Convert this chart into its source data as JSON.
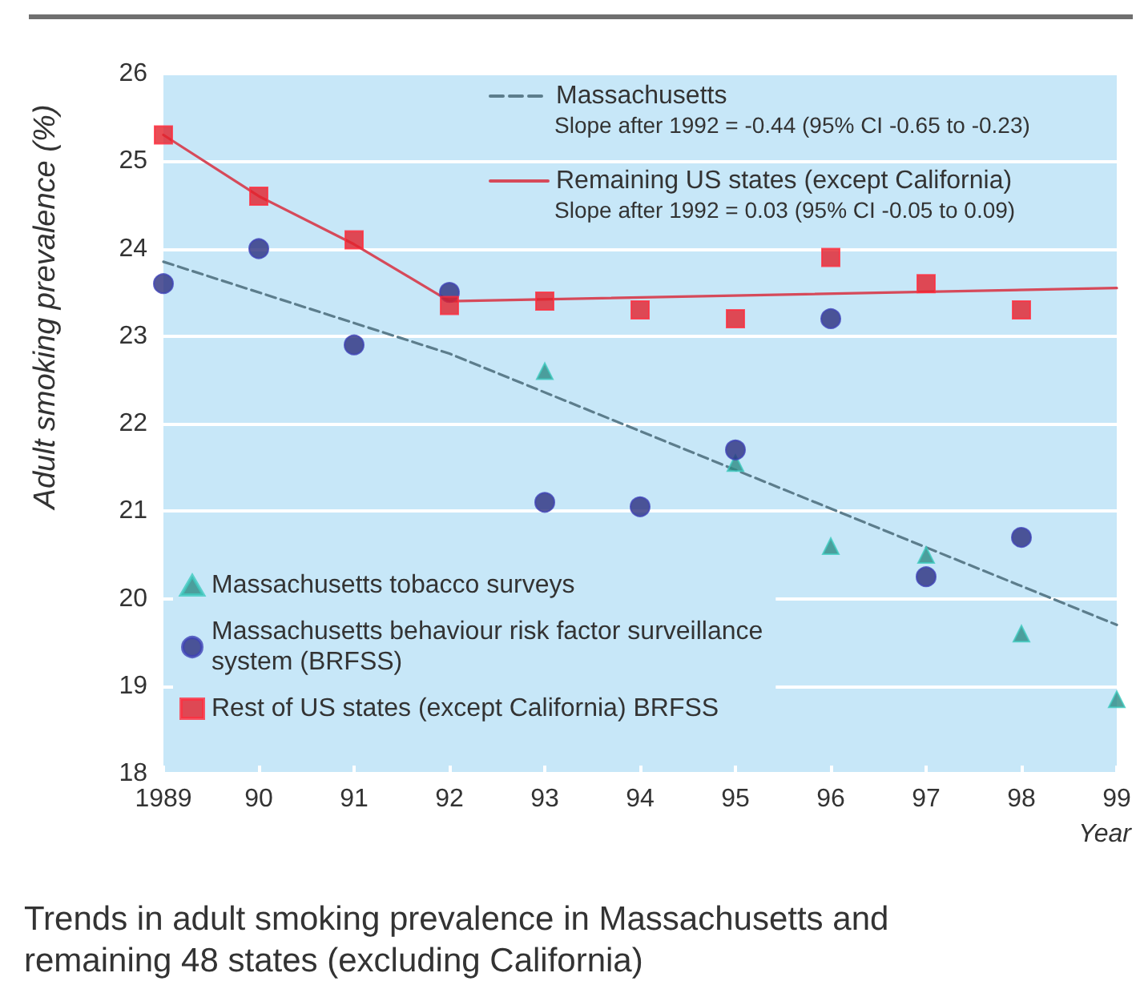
{
  "chart_data": {
    "type": "scatter",
    "title": "Trends in adult smoking prevalence in Massachusetts and remaining 48 states (excluding California)",
    "xlabel": "Year",
    "ylabel": "Adult smoking prevalence (%)",
    "annotations": [
      "Slope after 1992 = -0.44 (95% CI -0.65 to -0.23)",
      "Slope after 1992 = 0.03 (95% CI -0.05 to 0.09)"
    ],
    "series": [
      {
        "name": "Massachusetts",
        "type": "line",
        "color": "#5c7d8c",
        "line_style": "dashed",
        "marker": "none",
        "x": [
          1989,
          1992,
          1999
        ],
        "values": [
          23.85,
          22.8,
          19.7
        ]
      },
      {
        "name": "Remaining US states (except California)",
        "type": "line",
        "color": "#d64a5a",
        "line_style": "solid",
        "marker": "none",
        "x": [
          1989,
          1990,
          1991,
          1992,
          1999
        ],
        "values": [
          25.3,
          24.6,
          24.05,
          23.4,
          23.55
        ]
      },
      {
        "name": "Massachusetts tobacco surveys",
        "color": "#2c8c84",
        "marker": "triangle",
        "x": [
          1993,
          1995,
          1996,
          1997,
          1998,
          1999
        ],
        "values": [
          22.6,
          21.55,
          20.6,
          20.5,
          19.6,
          18.85
        ]
      },
      {
        "name": "Massachusetts behaviour risk factor surveillance system (BRFSS)",
        "color": "#2b2e7e",
        "marker": "circle",
        "x": [
          1989,
          1990,
          1991,
          1992,
          1993,
          1994,
          1995,
          1996,
          1997,
          1998
        ],
        "values": [
          23.6,
          24.0,
          22.9,
          23.5,
          21.1,
          21.05,
          21.7,
          23.2,
          20.25,
          20.7
        ]
      },
      {
        "name": "Rest of US states (except California) BRFSS",
        "color": "#e3202b",
        "marker": "square",
        "x": [
          1989,
          1990,
          1991,
          1992,
          1993,
          1994,
          1995,
          1996,
          1997,
          1998
        ],
        "values": [
          25.3,
          24.6,
          24.1,
          23.35,
          23.4,
          23.3,
          23.2,
          23.9,
          23.6,
          23.3
        ]
      }
    ],
    "xlim": [
      1989,
      1999
    ],
    "xticks": [
      1989,
      {
        "value": 1990,
        "label": "90"
      },
      {
        "value": 1991,
        "label": "91"
      },
      {
        "value": 1992,
        "label": "92"
      },
      {
        "value": 1993,
        "label": "93"
      },
      {
        "value": 1994,
        "label": "94"
      },
      {
        "value": 1995,
        "label": "95"
      },
      {
        "value": 1996,
        "label": "96"
      },
      {
        "value": 1997,
        "label": "97"
      },
      {
        "value": 1998,
        "label": "98"
      },
      {
        "value": 1999,
        "label": "99"
      }
    ],
    "ylim": [
      18,
      26
    ],
    "yticks": [
      18,
      19,
      20,
      21,
      22,
      23,
      24,
      25,
      26
    ],
    "grid": "y",
    "legend": [
      "top right",
      "bottom left"
    ]
  }
}
